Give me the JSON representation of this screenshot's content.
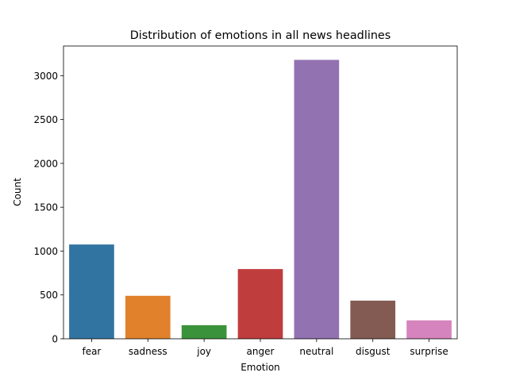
{
  "chart_data": {
    "type": "bar",
    "title": "Distribution of emotions in all news headlines",
    "xlabel": "Emotion",
    "ylabel": "Count",
    "categories": [
      "fear",
      "sadness",
      "joy",
      "anger",
      "neutral",
      "disgust",
      "surprise"
    ],
    "values": [
      1075,
      490,
      155,
      795,
      3180,
      435,
      210
    ],
    "colors": [
      "#3274a1",
      "#e1812c",
      "#3a923a",
      "#c03d3e",
      "#9372b2",
      "#845b53",
      "#d684bd"
    ],
    "ylim": [
      0,
      3338
    ],
    "yticks": [
      0,
      500,
      1000,
      1500,
      2000,
      2500,
      3000
    ],
    "grid": false,
    "legend": "none"
  }
}
